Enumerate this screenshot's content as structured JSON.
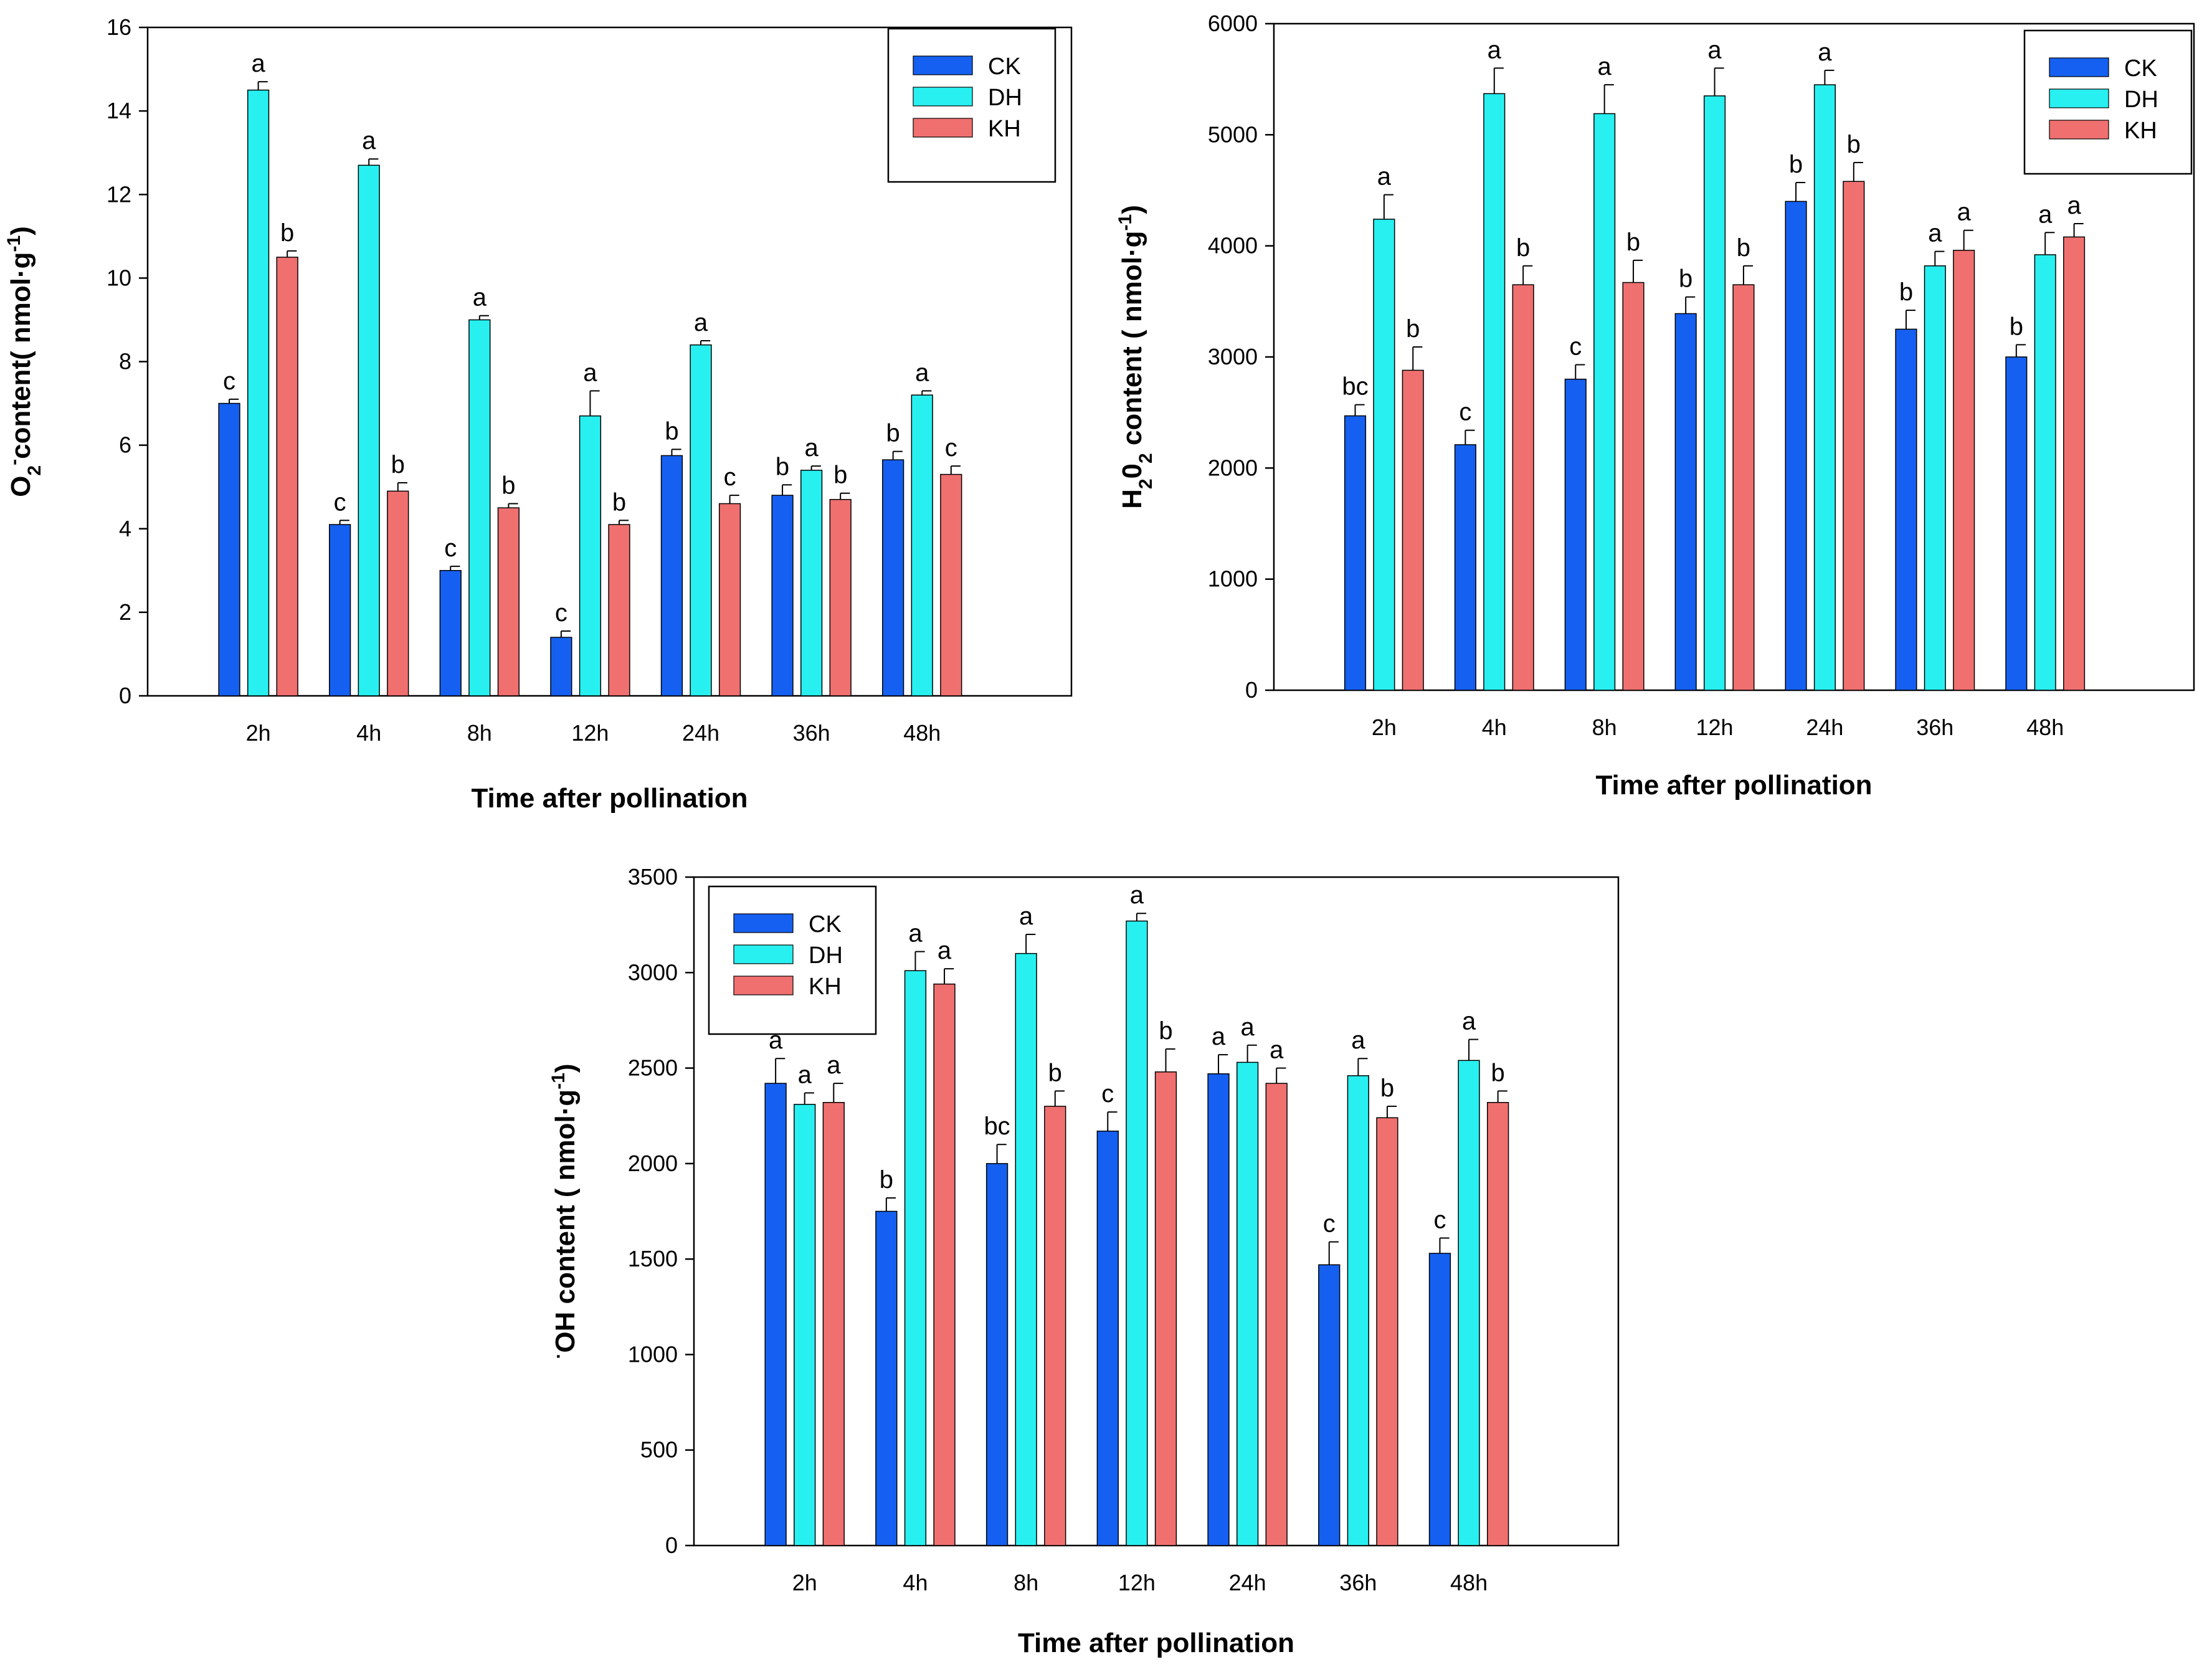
{
  "colors": {
    "CK": "#1560f0",
    "DH": "#28f0f0",
    "KH": "#f07070"
  },
  "chart_data": [
    {
      "type": "bar",
      "id": "o2",
      "title": "",
      "ylabel_prefix": "O",
      "ylabel_sub": "2",
      "ylabel_sup": "-",
      "ylabel_main": "content( nmol·g",
      "ylabel_unit_sup": "-1",
      "ylabel_end": ")",
      "xlabel": "Time after pollination",
      "categories": [
        "2h",
        "4h",
        "8h",
        "12h",
        "24h",
        "36h",
        "48h"
      ],
      "ylim": [
        0,
        16
      ],
      "yticks": [
        0,
        2,
        4,
        6,
        8,
        10,
        12,
        14,
        16
      ],
      "legend": "top-right",
      "series": [
        {
          "name": "CK",
          "values": [
            7.0,
            4.1,
            3.0,
            1.4,
            5.75,
            4.8,
            5.65
          ],
          "errors": [
            0.1,
            0.1,
            0.1,
            0.15,
            0.15,
            0.25,
            0.2
          ],
          "letters": [
            "c",
            "c",
            "c",
            "c",
            "b",
            "b",
            "b"
          ]
        },
        {
          "name": "DH",
          "values": [
            14.5,
            12.7,
            9.0,
            6.7,
            8.4,
            5.4,
            7.2
          ],
          "errors": [
            0.2,
            0.15,
            0.1,
            0.6,
            0.1,
            0.1,
            0.1
          ],
          "letters": [
            "a",
            "a",
            "a",
            "a",
            "a",
            "a",
            "a"
          ]
        },
        {
          "name": "KH",
          "values": [
            10.5,
            4.9,
            4.5,
            4.1,
            4.6,
            4.7,
            5.3
          ],
          "errors": [
            0.15,
            0.2,
            0.1,
            0.1,
            0.2,
            0.15,
            0.2
          ],
          "letters": [
            "b",
            "b",
            "b",
            "b",
            "c",
            "b",
            "c"
          ]
        }
      ]
    },
    {
      "type": "bar",
      "id": "h2o2",
      "title": "",
      "ylabel_prefix": "H",
      "ylabel_sub": "2",
      "ylabel_mid": "0",
      "ylabel_sub2": "2",
      "ylabel_main": " content ( nmol·g",
      "ylabel_unit_sup": "-1",
      "ylabel_end": ")",
      "xlabel": "Time after pollination",
      "categories": [
        "2h",
        "4h",
        "8h",
        "12h",
        "24h",
        "36h",
        "48h"
      ],
      "ylim": [
        0,
        6000
      ],
      "yticks": [
        0,
        1000,
        2000,
        3000,
        4000,
        5000,
        6000
      ],
      "legend": "top-right",
      "series": [
        {
          "name": "CK",
          "values": [
            2470,
            2210,
            2800,
            3390,
            4400,
            3250,
            3000
          ],
          "errors": [
            100,
            130,
            130,
            150,
            170,
            170,
            110
          ],
          "letters": [
            "bc",
            "c",
            "c",
            "b",
            "b",
            "b",
            "b"
          ]
        },
        {
          "name": "DH",
          "values": [
            4240,
            5370,
            5190,
            5350,
            5450,
            3820,
            3920
          ],
          "errors": [
            220,
            230,
            260,
            250,
            130,
            130,
            200
          ],
          "letters": [
            "a",
            "a",
            "a",
            "a",
            "a",
            "a",
            "a"
          ]
        },
        {
          "name": "KH",
          "values": [
            2880,
            3650,
            3670,
            3650,
            4580,
            3960,
            4080
          ],
          "errors": [
            210,
            170,
            200,
            170,
            170,
            180,
            120
          ],
          "letters": [
            "b",
            "b",
            "b",
            "b",
            "b",
            "a",
            "a"
          ]
        }
      ]
    },
    {
      "type": "bar",
      "id": "oh",
      "title": "",
      "ylabel_prefix": "",
      "ylabel_sup_lead": "·",
      "ylabel_main": "OH content ( nmol·g",
      "ylabel_unit_sup": "-1",
      "ylabel_end": ")",
      "xlabel": "Time after pollination",
      "categories": [
        "2h",
        "4h",
        "8h",
        "12h",
        "24h",
        "36h",
        "48h"
      ],
      "ylim": [
        0,
        3500
      ],
      "yticks": [
        0,
        500,
        1000,
        1500,
        2000,
        2500,
        3000,
        3500
      ],
      "legend": "top-left",
      "series": [
        {
          "name": "CK",
          "values": [
            2420,
            1750,
            2000,
            2170,
            2470,
            1470,
            1530
          ],
          "errors": [
            130,
            70,
            100,
            100,
            100,
            120,
            80
          ],
          "letters": [
            "a",
            "b",
            "bc",
            "c",
            "a",
            "c",
            "c"
          ]
        },
        {
          "name": "DH",
          "values": [
            2310,
            3010,
            3100,
            3270,
            2530,
            2460,
            2540
          ],
          "errors": [
            60,
            100,
            100,
            40,
            90,
            90,
            110
          ],
          "letters": [
            "a",
            "a",
            "a",
            "a",
            "a",
            "a",
            "a"
          ]
        },
        {
          "name": "KH",
          "values": [
            2320,
            2940,
            2300,
            2480,
            2420,
            2240,
            2320
          ],
          "errors": [
            100,
            80,
            80,
            120,
            80,
            60,
            60
          ],
          "letters": [
            "a",
            "a",
            "b",
            "b",
            "a",
            "b",
            "b"
          ]
        }
      ]
    }
  ]
}
